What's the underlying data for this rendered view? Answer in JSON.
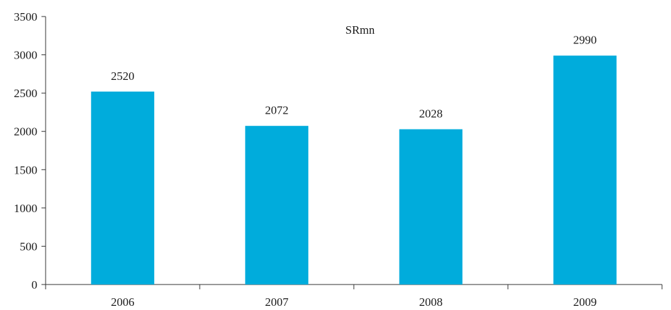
{
  "chart_data": {
    "type": "bar",
    "title": "",
    "unit_label": "SRmn",
    "xlabel": "",
    "ylabel": "",
    "categories": [
      "2006",
      "2007",
      "2008",
      "2009"
    ],
    "values": [
      2520,
      2072,
      2028,
      2990
    ],
    "data_labels": [
      "2520",
      "2072",
      "2028",
      "2990"
    ],
    "y_ticks": [
      0,
      500,
      1000,
      1500,
      2000,
      2500,
      3000,
      3500
    ],
    "ylim": [
      0,
      3500
    ],
    "grid": false,
    "legend": "none",
    "bar_color": "#00acdc"
  }
}
